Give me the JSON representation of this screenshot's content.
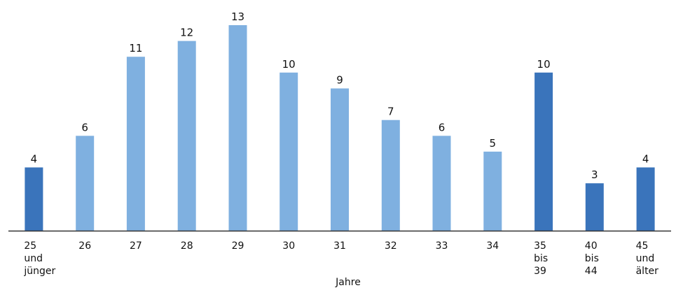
{
  "chart_data": {
    "type": "bar",
    "title": "",
    "xlabel": "Jahre",
    "ylabel": "",
    "ylim": [
      0,
      13
    ],
    "grid": false,
    "legend": "none",
    "categories": [
      "25 und jünger",
      "26",
      "27",
      "28",
      "29",
      "30",
      "31",
      "32",
      "33",
      "34",
      "35 bis 39",
      "40 bis 44",
      "45 und älter"
    ],
    "category_lines": [
      [
        "25",
        "und",
        "jünger"
      ],
      [
        "26"
      ],
      [
        "27"
      ],
      [
        "28"
      ],
      [
        "29"
      ],
      [
        "30"
      ],
      [
        "31"
      ],
      [
        "32"
      ],
      [
        "33"
      ],
      [
        "34"
      ],
      [
        "35",
        "bis",
        "39"
      ],
      [
        "40",
        "bis",
        "44"
      ],
      [
        "45",
        "und",
        "älter"
      ]
    ],
    "values": [
      4,
      6,
      11,
      12,
      13,
      10,
      9,
      7,
      6,
      5,
      10,
      3,
      4
    ],
    "bar_groups": [
      "range",
      "single",
      "single",
      "single",
      "single",
      "single",
      "single",
      "single",
      "single",
      "single",
      "range",
      "range",
      "range"
    ],
    "colors": {
      "single": "#7fb0e0",
      "range": "#3a74bb",
      "axis": "#333333",
      "text": "#111111"
    }
  }
}
